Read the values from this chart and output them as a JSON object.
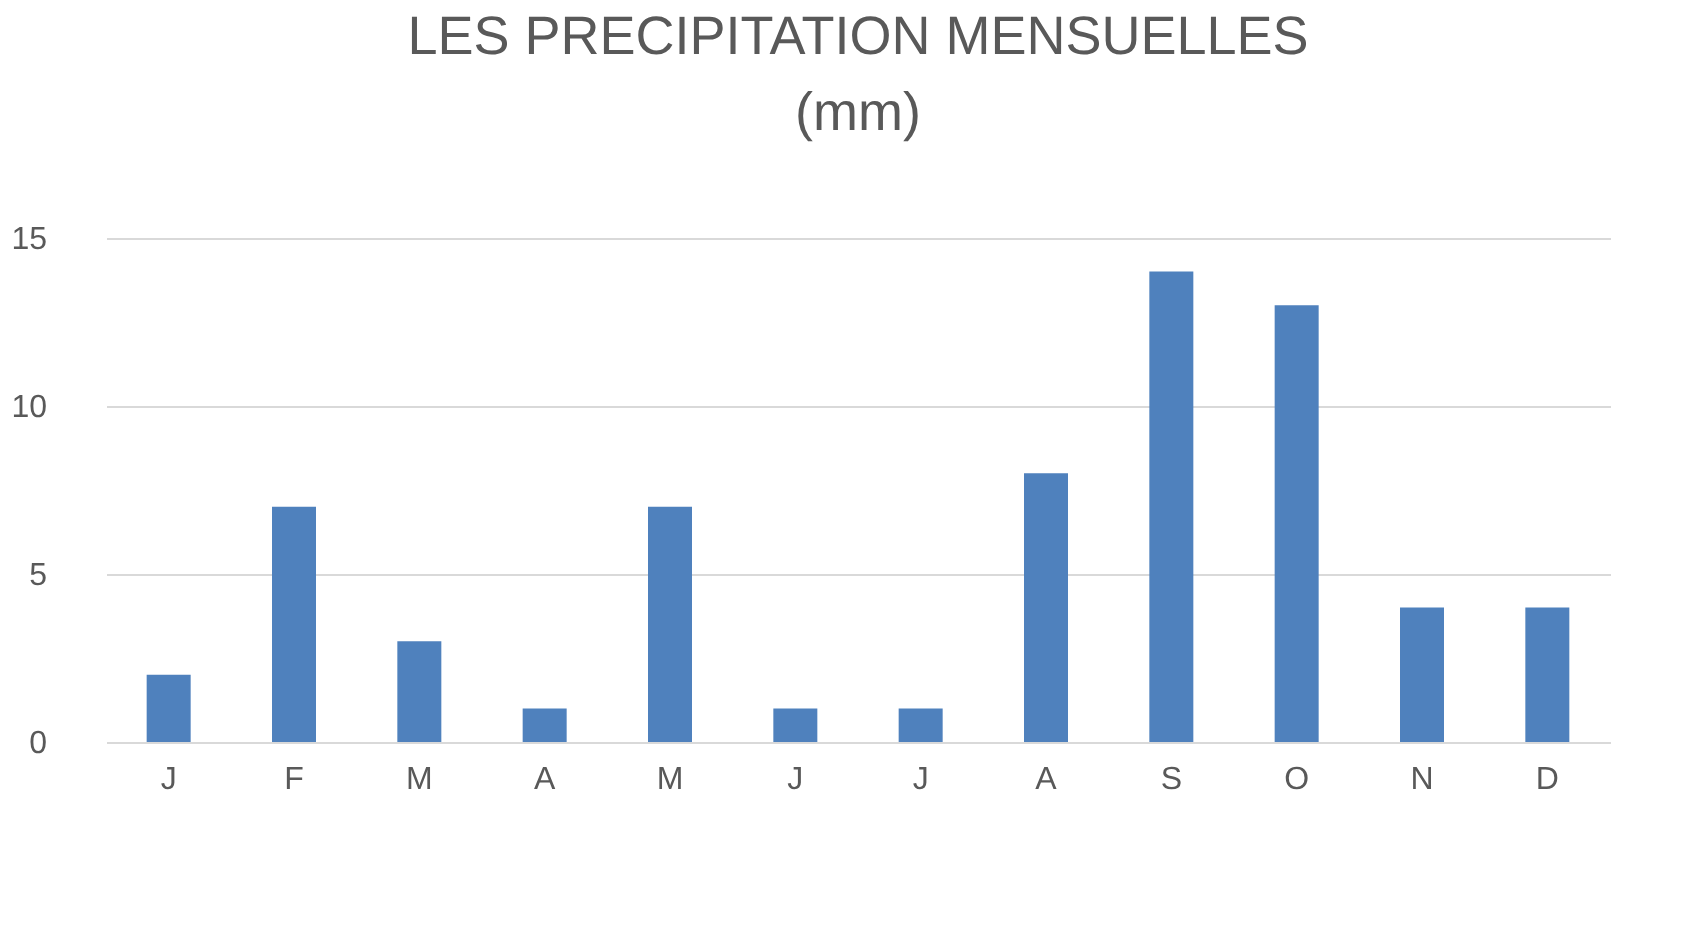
{
  "chart_data": {
    "type": "bar",
    "title": "LES PRECIPITATION MENSUELLES (mm)",
    "categories": [
      "J",
      "F",
      "M",
      "A",
      "M",
      "J",
      "J",
      "A",
      "S",
      "O",
      "N",
      "D"
    ],
    "values": [
      2,
      7,
      3,
      1,
      7,
      1,
      1,
      8,
      14,
      13,
      4,
      4
    ],
    "color": "#4f81bd",
    "ylim": [
      0,
      15
    ],
    "yticks": [
      0,
      5,
      10,
      15
    ],
    "grid": "y"
  }
}
